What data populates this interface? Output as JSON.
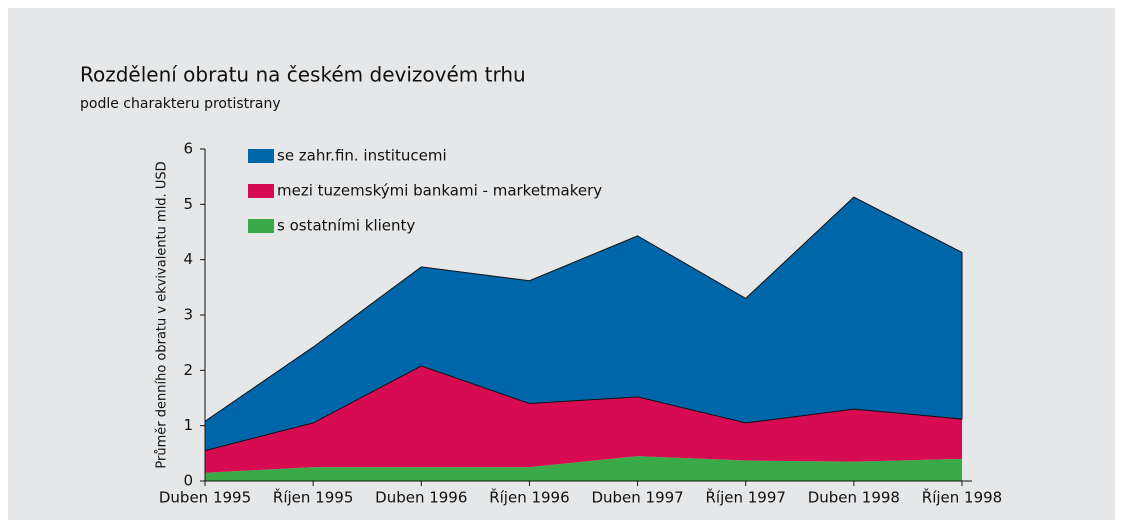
{
  "chart_data": {
    "type": "stacked_area",
    "title": "Rozdělení obratu na českém devizovém trhu",
    "subtitle": "podle charakteru protistrany",
    "y_label": "Průměr denního obratu v ekvivalentu mld. USD",
    "categories": [
      "Duben 1995",
      "Říjen 1995",
      "Duben 1996",
      "Říjen 1996",
      "Duben 1997",
      "Říjen 1997",
      "Duben 1998",
      "Říjen 1998"
    ],
    "series": [
      {
        "name": "s ostatními klienty",
        "color": "#3aaa48",
        "values": [
          0.15,
          0.25,
          0.25,
          0.25,
          0.45,
          0.37,
          0.35,
          0.4
        ]
      },
      {
        "name": "mezi tuzemskými bankami - marketmakery",
        "color": "#d60b52",
        "values": [
          0.4,
          0.8,
          1.83,
          1.15,
          1.07,
          0.68,
          0.95,
          0.72
        ]
      },
      {
        "name": "se zahr.fin. institucemi",
        "color": "#0066aa",
        "values": [
          0.53,
          1.37,
          1.79,
          2.22,
          2.91,
          2.25,
          3.83,
          3.01
        ]
      }
    ],
    "ylim": [
      0,
      6
    ],
    "yticks": [
      0,
      1,
      2,
      3,
      4,
      5,
      6
    ]
  }
}
